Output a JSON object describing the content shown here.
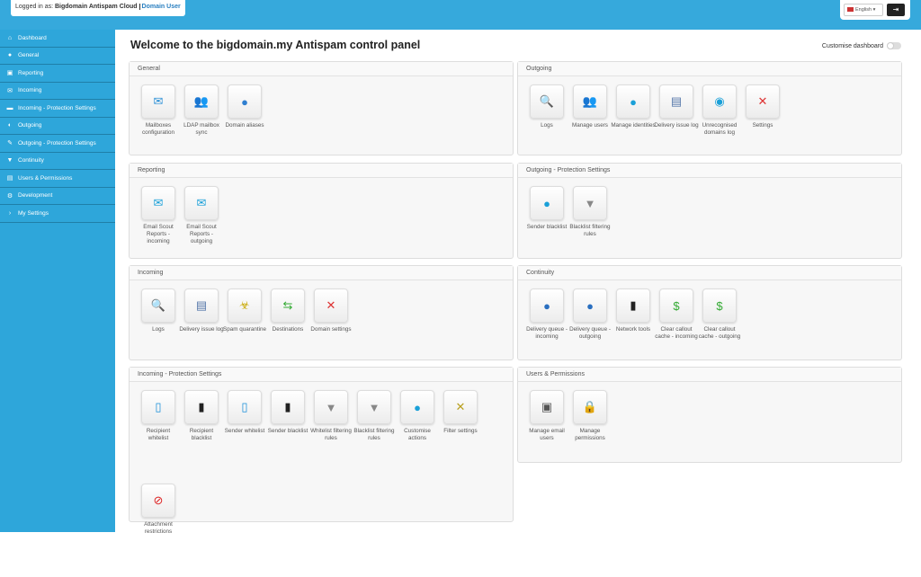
{
  "header": {
    "logged_in_prefix": "Logged in as:",
    "account": "Bigdomain Antispam Cloud",
    "role": "Domain User",
    "language": "English ▾",
    "logout_icon": "logout-icon"
  },
  "sidebar": {
    "items": [
      {
        "label": "Dashboard",
        "icon": "home-icon",
        "glyph": "⌂"
      },
      {
        "label": "General",
        "icon": "globe-icon",
        "glyph": "●"
      },
      {
        "label": "Reporting",
        "icon": "inbox-icon",
        "glyph": "▣"
      },
      {
        "label": "Incoming",
        "icon": "envelope-icon",
        "glyph": "✉"
      },
      {
        "label": "Incoming - Protection Settings",
        "icon": "folder-open-icon",
        "glyph": "▬"
      },
      {
        "label": "Outgoing",
        "icon": "half-circle-icon",
        "glyph": "◐"
      },
      {
        "label": "Outgoing - Protection Settings",
        "icon": "wrench-icon",
        "glyph": "✎"
      },
      {
        "label": "Continuity",
        "icon": "filter-icon",
        "glyph": "▼"
      },
      {
        "label": "Users & Permissions",
        "icon": "id-card-icon",
        "glyph": "▤"
      },
      {
        "label": "Development",
        "icon": "gear-icon",
        "glyph": "⚙"
      },
      {
        "label": "My Settings",
        "icon": "chevron-right-icon",
        "glyph": "›"
      }
    ]
  },
  "main": {
    "title": "Welcome to the bigdomain.my Antispam control panel",
    "customise_label": "Customise dashboard",
    "customise_on": false
  },
  "sections": [
    {
      "title": "General",
      "tiles": [
        {
          "label": "Mailboxes configuration",
          "icon": "envelope-icon",
          "glyph": "✉",
          "color": "#2a8fd6"
        },
        {
          "label": "LDAP mailbox sync",
          "icon": "ldap-users-icon",
          "glyph": "👥",
          "color": "#333"
        },
        {
          "label": "Domain aliases",
          "icon": "globe-icon",
          "glyph": "●",
          "color": "#2f7fd0"
        }
      ]
    },
    {
      "title": "Outgoing",
      "tiles": [
        {
          "label": "Logs",
          "icon": "magnifier-icon",
          "glyph": "🔍",
          "color": "#999"
        },
        {
          "label": "Manage users",
          "icon": "users-icon",
          "glyph": "👥",
          "color": "#3a6"
        },
        {
          "label": "Manage identities",
          "icon": "identity-icon",
          "glyph": "●",
          "color": "#1aa0d8"
        },
        {
          "label": "Delivery issue log",
          "icon": "document-icon",
          "glyph": "▤",
          "color": "#5577aa"
        },
        {
          "label": "Unrecognised domains log",
          "icon": "target-icon",
          "glyph": "◉",
          "color": "#1aa0d8"
        },
        {
          "label": "Settings",
          "icon": "tools-icon",
          "glyph": "✕",
          "color": "#d33"
        }
      ]
    },
    {
      "title": "Reporting",
      "tiles": [
        {
          "label": "Email Scout Reports - incoming",
          "icon": "email-report-icon",
          "glyph": "✉",
          "color": "#1aa0d8"
        },
        {
          "label": "Email Scout Reports - outgoing",
          "icon": "email-report-icon",
          "glyph": "✉",
          "color": "#1aa0d8"
        }
      ]
    },
    {
      "title": "Outgoing - Protection Settings",
      "tiles": [
        {
          "label": "Sender blacklist",
          "icon": "sender-blacklist-icon",
          "glyph": "●",
          "color": "#1aa0d8"
        },
        {
          "label": "Blacklist filtering rules",
          "icon": "funnel-icon",
          "glyph": "▼",
          "color": "#888"
        }
      ]
    },
    {
      "title": "Incoming",
      "tiles": [
        {
          "label": "Logs",
          "icon": "magnifier-icon",
          "glyph": "🔍",
          "color": "#999"
        },
        {
          "label": "Delivery issue log",
          "icon": "document-icon",
          "glyph": "▤",
          "color": "#5577aa"
        },
        {
          "label": "Spam quarantine",
          "icon": "biohazard-icon",
          "glyph": "☣",
          "color": "#c9a800"
        },
        {
          "label": "Destinations",
          "icon": "arrows-icon",
          "glyph": "⇆",
          "color": "#3a3"
        },
        {
          "label": "Domain settings",
          "icon": "tools-icon",
          "glyph": "✕",
          "color": "#d33"
        }
      ]
    },
    {
      "title": "Continuity",
      "tiles": [
        {
          "label": "Delivery queue - incoming",
          "icon": "queue-icon",
          "glyph": "●",
          "color": "#2a6fc0"
        },
        {
          "label": "Delivery queue - outgoing",
          "icon": "queue-icon",
          "glyph": "●",
          "color": "#2a6fc0"
        },
        {
          "label": "Network tools",
          "icon": "server-icon",
          "glyph": "▮",
          "color": "#222"
        },
        {
          "label": "Clear callout cache - incoming",
          "icon": "cache-refresh-icon",
          "glyph": "$",
          "color": "#3a3"
        },
        {
          "label": "Clear callout cache - outgoing",
          "icon": "cache-refresh-icon",
          "glyph": "$",
          "color": "#3a3"
        }
      ]
    },
    {
      "title": "Incoming - Protection Settings",
      "tiles": [
        {
          "label": "Recipient whitelist",
          "icon": "recipient-whitelist-icon",
          "glyph": "▯",
          "color": "#1a8fd8"
        },
        {
          "label": "Recipient blacklist",
          "icon": "recipient-blacklist-icon",
          "glyph": "▮",
          "color": "#222"
        },
        {
          "label": "Sender whitelist",
          "icon": "sender-whitelist-icon",
          "glyph": "▯",
          "color": "#1a8fd8"
        },
        {
          "label": "Sender blacklist",
          "icon": "sender-blacklist-icon",
          "glyph": "▮",
          "color": "#222"
        },
        {
          "label": "Whitelist filtering rules",
          "icon": "funnel-icon",
          "glyph": "▼",
          "color": "#888"
        },
        {
          "label": "Blacklist filtering rules",
          "icon": "funnel-icon",
          "glyph": "▼",
          "color": "#888"
        },
        {
          "label": "Customise actions",
          "icon": "edit-circle-icon",
          "glyph": "●",
          "color": "#1aa0d8"
        },
        {
          "label": "Filter settings",
          "icon": "filter-tools-icon",
          "glyph": "✕",
          "color": "#b9a020"
        },
        {
          "label": "Attachment restrictions",
          "icon": "attachment-block-icon",
          "glyph": "⊘",
          "color": "#d22"
        }
      ]
    },
    {
      "title": "Users & Permissions",
      "tiles": [
        {
          "label": "Manage email users",
          "icon": "email-users-icon",
          "glyph": "▣",
          "color": "#555"
        },
        {
          "label": "Manage permissions",
          "icon": "padlock-icon",
          "glyph": "🔒",
          "color": "#d9a400"
        }
      ]
    }
  ]
}
